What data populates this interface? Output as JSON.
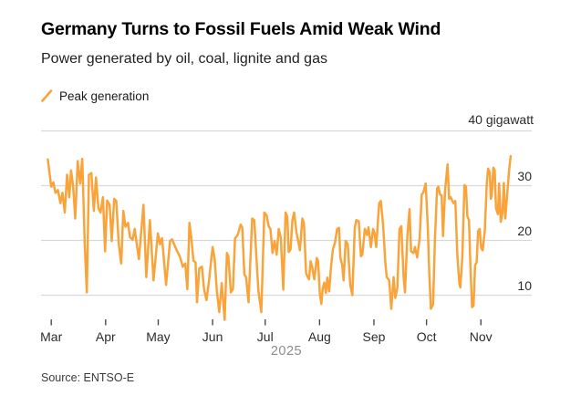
{
  "header": {
    "title": "Germany Turns to Fossil Fuels Amid Weak Wind",
    "subtitle": "Power generated by oil, coal, lignite and gas"
  },
  "footer": {
    "source": "Source: ENTSO-E"
  },
  "colors": {
    "line": "#F9A43B",
    "gridline": "#d9d9d9",
    "tick": "#4a4a4a",
    "background": "#ffffff"
  },
  "chart_data": {
    "type": "line",
    "title": "Germany Turns to Fossil Fuels Amid Weak Wind",
    "subtitle": "Power generated by oil, coal, lignite and gas",
    "legend_label": "Peak generation",
    "legend_position": "top-left",
    "unit_label": "40 gigawatt",
    "ylabel": "gigawatt",
    "yticks": [
      10,
      20,
      30,
      40
    ],
    "ytick_side_labels": [
      "30",
      "20",
      "10"
    ],
    "ylim": [
      4,
      40
    ],
    "grid": "horizontal",
    "source": "Source: ENTSO-E",
    "x_axis": {
      "year": "2025",
      "day0_date": "2025-03-01",
      "months": [
        {
          "label": "Mar",
          "day": 0
        },
        {
          "label": "Apr",
          "day": 31
        },
        {
          "label": "May",
          "day": 61
        },
        {
          "label": "Jun",
          "day": 92
        },
        {
          "label": "Jul",
          "day": 122
        },
        {
          "label": "Aug",
          "day": 153
        },
        {
          "label": "Sep",
          "day": 184
        },
        {
          "label": "Oct",
          "day": 214
        },
        {
          "label": "Nov",
          "day": 245
        }
      ]
    },
    "series": [
      {
        "name": "Peak generation",
        "unit": "GW",
        "points": [
          [
            -2,
            34.8
          ],
          [
            0,
            29.8
          ],
          [
            1.2,
            30.6
          ],
          [
            2.4,
            28.7
          ],
          [
            3.8,
            29.2
          ],
          [
            5.2,
            26.8
          ],
          [
            6.4,
            28.7
          ],
          [
            7.7,
            25.1
          ],
          [
            9,
            32
          ],
          [
            10.3,
            27.9
          ],
          [
            11.3,
            32.8
          ],
          [
            12.5,
            29.8
          ],
          [
            13.7,
            24
          ],
          [
            15.1,
            34.5
          ],
          [
            16.5,
            30.4
          ],
          [
            17.7,
            34.9
          ],
          [
            19.1,
            19.3
          ],
          [
            20.3,
            10.5
          ],
          [
            21.5,
            32
          ],
          [
            22.9,
            32.3
          ],
          [
            24.3,
            25.4
          ],
          [
            25.5,
            31.5
          ],
          [
            26.9,
            25.9
          ],
          [
            28.1,
            25.1
          ],
          [
            29.5,
            27.9
          ],
          [
            30.7,
            18
          ],
          [
            31.9,
            27.3
          ],
          [
            33.3,
            26.5
          ],
          [
            34.5,
            19.9
          ],
          [
            35.9,
            27.6
          ],
          [
            37.1,
            27.2
          ],
          [
            38.5,
            19.3
          ],
          [
            39.9,
            15.8
          ],
          [
            41.1,
            25.4
          ],
          [
            42.3,
            22.5
          ],
          [
            43.8,
            23.2
          ],
          [
            44.9,
            20.6
          ],
          [
            46.4,
            20.1
          ],
          [
            47.6,
            22.1
          ],
          [
            49,
            18.8
          ],
          [
            50,
            16.6
          ],
          [
            52.6,
            26.5
          ],
          [
            54.2,
            13.3
          ],
          [
            56.3,
            23.7
          ],
          [
            58.3,
            12.7
          ],
          [
            60.8,
            21.3
          ],
          [
            62,
            19.3
          ],
          [
            63.2,
            20.4
          ],
          [
            65.5,
            11.9
          ],
          [
            67.7,
            19.9
          ],
          [
            68.9,
            20.2
          ],
          [
            71.5,
            18.2
          ],
          [
            73.3,
            17.1
          ],
          [
            75,
            15.2
          ],
          [
            76.4,
            15.8
          ],
          [
            77.6,
            11.1
          ],
          [
            78.8,
            23.2
          ],
          [
            79.8,
            20.7
          ],
          [
            81.1,
            16.3
          ],
          [
            82.3,
            16
          ],
          [
            83.1,
            8.7
          ],
          [
            84.4,
            14.9
          ],
          [
            85.9,
            15.2
          ],
          [
            87.1,
            11.1
          ],
          [
            88.5,
            9.1
          ],
          [
            90.1,
            13
          ],
          [
            92,
            18.8
          ],
          [
            93.2,
            16.6
          ],
          [
            94.4,
            10.8
          ],
          [
            95.8,
            6.9
          ],
          [
            97.2,
            12.2
          ],
          [
            98.9,
            5.5
          ],
          [
            100.2,
            17.7
          ],
          [
            101,
            17.1
          ],
          [
            102.4,
            10.5
          ],
          [
            103.6,
            11.1
          ],
          [
            104.8,
            20.4
          ],
          [
            106.3,
            21
          ],
          [
            108,
            22.9
          ],
          [
            108.9,
            22.4
          ],
          [
            110.1,
            13.8
          ],
          [
            111.1,
            13.3
          ],
          [
            112.5,
            8.7
          ],
          [
            114.6,
            24
          ],
          [
            115.8,
            23.7
          ],
          [
            118.1,
            10.8
          ],
          [
            119.8,
            6.9
          ],
          [
            121.5,
            25.1
          ],
          [
            122.8,
            24.6
          ],
          [
            124,
            22.6
          ],
          [
            125,
            22.1
          ],
          [
            126.2,
            17.7
          ],
          [
            127.4,
            19.9
          ],
          [
            128.5,
            17.4
          ],
          [
            129.7,
            22.1
          ],
          [
            130.9,
            20.4
          ],
          [
            132.3,
            11
          ],
          [
            133.6,
            25.1
          ],
          [
            134.6,
            24.3
          ],
          [
            135.4,
            17.9
          ],
          [
            136.5,
            18.4
          ],
          [
            137.5,
            23.7
          ],
          [
            138.5,
            25.1
          ],
          [
            139.8,
            21.5
          ],
          [
            141,
            19.6
          ],
          [
            141.8,
            18.2
          ],
          [
            143.2,
            24
          ],
          [
            144.1,
            23.2
          ],
          [
            145.3,
            14
          ],
          [
            146.4,
            13.2
          ],
          [
            147,
            12.9
          ],
          [
            147.9,
            16.2
          ],
          [
            148.8,
            15.1
          ],
          [
            150,
            12.9
          ],
          [
            151.4,
            16.8
          ],
          [
            152.2,
            16.2
          ],
          [
            153.1,
            10.4
          ],
          [
            154,
            8.4
          ],
          [
            154.8,
            11.2
          ],
          [
            155.7,
            12.3
          ],
          [
            156.6,
            10.4
          ],
          [
            157.4,
            13.2
          ],
          [
            158.5,
            10.7
          ],
          [
            159.5,
            15.1
          ],
          [
            160.6,
            18.4
          ],
          [
            161.8,
            19.6
          ],
          [
            163,
            22.1
          ],
          [
            164.1,
            22.3
          ],
          [
            164.9,
            16.8
          ],
          [
            165.9,
            15.5
          ],
          [
            166.7,
            12.7
          ],
          [
            167.9,
            19.9
          ],
          [
            169.1,
            19.3
          ],
          [
            170.5,
            11.9
          ],
          [
            171.7,
            10
          ],
          [
            173.1,
            22.4
          ],
          [
            174,
            23.7
          ],
          [
            175.4,
            23.5
          ],
          [
            176.6,
            17.1
          ],
          [
            177.4,
            17.4
          ],
          [
            178.8,
            22.1
          ],
          [
            180.1,
            21
          ],
          [
            180.9,
            22.4
          ],
          [
            182.3,
            18.8
          ],
          [
            183.5,
            22.1
          ],
          [
            184.4,
            21.3
          ],
          [
            185.3,
            18.8
          ],
          [
            187,
            26.8
          ],
          [
            187.9,
            27.2
          ],
          [
            189.2,
            22.9
          ],
          [
            190.5,
            16
          ],
          [
            191.3,
            13.3
          ],
          [
            192.7,
            12.7
          ],
          [
            193.9,
            7.5
          ],
          [
            195.2,
            13.3
          ],
          [
            196.2,
            9.5
          ],
          [
            197.4,
            11.4
          ],
          [
            198.6,
            22.1
          ],
          [
            199.6,
            22.6
          ],
          [
            200.9,
            13.3
          ],
          [
            201.7,
            10.5
          ],
          [
            203.1,
            21
          ],
          [
            204.3,
            25.7
          ],
          [
            205.2,
            18
          ],
          [
            206.6,
            17.7
          ],
          [
            207.4,
            18.8
          ],
          [
            208.7,
            16.9
          ],
          [
            210.1,
            20.4
          ],
          [
            211.3,
            28.4
          ],
          [
            212.1,
            28.7
          ],
          [
            213.5,
            30.4
          ],
          [
            214.7,
            22.6
          ],
          [
            215.6,
            13.8
          ],
          [
            216.5,
            7.5
          ],
          [
            217.7,
            8.3
          ],
          [
            218.8,
            20.4
          ],
          [
            220,
            29.5
          ],
          [
            220.8,
            29.8
          ],
          [
            221.7,
            28.4
          ],
          [
            222.6,
            28.2
          ],
          [
            223.4,
            20.8
          ],
          [
            224.6,
            29.2
          ],
          [
            226,
            33.9
          ],
          [
            226.9,
            27.6
          ],
          [
            227.8,
            27.9
          ],
          [
            228.6,
            27.3
          ],
          [
            229.5,
            26.8
          ],
          [
            230.4,
            27.2
          ],
          [
            231.6,
            17.1
          ],
          [
            232.7,
            12.2
          ],
          [
            233.3,
            11.4
          ],
          [
            234.4,
            16.9
          ],
          [
            235.6,
            30.1
          ],
          [
            236.5,
            29.8
          ],
          [
            237.3,
            24.4
          ],
          [
            238.2,
            23.7
          ],
          [
            239.1,
            14.7
          ],
          [
            240,
            7.8
          ],
          [
            240.8,
            8.1
          ],
          [
            241.7,
            15.5
          ],
          [
            242.6,
            16
          ],
          [
            243.4,
            21.7
          ],
          [
            244.3,
            22.1
          ],
          [
            245.2,
            18.6
          ],
          [
            246,
            18.2
          ],
          [
            247.2,
            21.7
          ],
          [
            248.3,
            30.1
          ],
          [
            249.1,
            33.1
          ],
          [
            250,
            32.5
          ],
          [
            250.7,
            27.6
          ],
          [
            251.2,
            28.2
          ],
          [
            252.1,
            33.3
          ],
          [
            252.9,
            32.8
          ],
          [
            253.6,
            25.9
          ],
          [
            254.7,
            24.8
          ],
          [
            255.4,
            30.4
          ],
          [
            256.3,
            23.4
          ],
          [
            257.3,
            25
          ],
          [
            258.1,
            30.5
          ],
          [
            258.9,
            24
          ],
          [
            259.9,
            28
          ],
          [
            261,
            32.5
          ],
          [
            262,
            35.4
          ]
        ]
      }
    ]
  }
}
